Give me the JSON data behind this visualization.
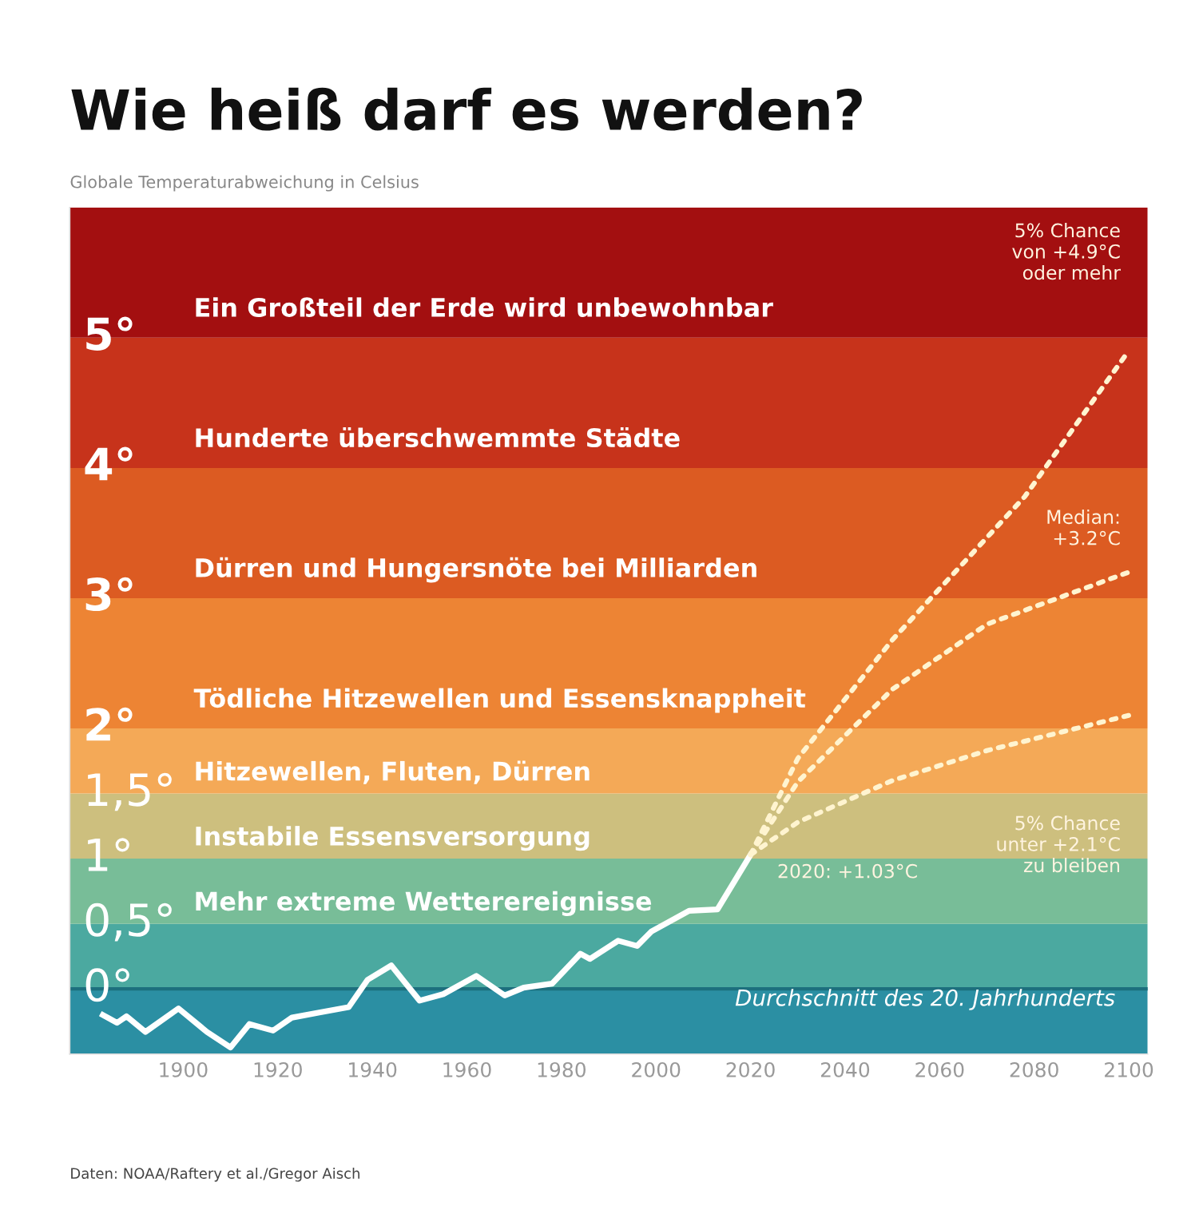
{
  "chart_data": {
    "type": "line",
    "title": "Wie heiß darf es werden?",
    "subtitle": "Globale Temperaturabweichung in Celsius",
    "xlim": [
      1876,
      2104
    ],
    "xticks": [
      1900,
      1920,
      1940,
      1960,
      1980,
      2000,
      2020,
      2040,
      2060,
      2080,
      2100
    ],
    "ylim": [
      -0.5,
      6
    ],
    "yticks": [
      {
        "value": 0,
        "label": "0°"
      },
      {
        "value": 0.5,
        "label": "0,5°"
      },
      {
        "value": 1,
        "label": "1°"
      },
      {
        "value": 1.5,
        "label": "1,5°"
      },
      {
        "value": 2,
        "label": "2°"
      },
      {
        "value": 3,
        "label": "3°"
      },
      {
        "value": 4,
        "label": "4°"
      },
      {
        "value": 5,
        "label": "5°"
      }
    ],
    "grid": false,
    "legend": false,
    "marker": "none",
    "bands": [
      {
        "axis": "y",
        "from": -0.5,
        "to": 0,
        "color": "#2b8fa3"
      },
      {
        "axis": "y",
        "from": 0,
        "to": 0.5,
        "color": "#4ba9a0"
      },
      {
        "axis": "y",
        "from": 0.5,
        "to": 1,
        "label": "Mehr extreme Wetterereignisse",
        "color": "#78bd98"
      },
      {
        "axis": "y",
        "from": 1,
        "to": 1.5,
        "label": "Instabile Essensversorgung",
        "color": "#cdbf7e"
      },
      {
        "axis": "y",
        "from": 1.5,
        "to": 2,
        "label": "Hitzewellen, Fluten, Dürren",
        "color": "#f4a957"
      },
      {
        "axis": "y",
        "from": 2,
        "to": 3,
        "label": "Tödliche Hitzewellen und Essensknappheit",
        "color": "#ed8434"
      },
      {
        "axis": "y",
        "from": 3,
        "to": 4,
        "label": "Dürren und Hungersnöte bei Milliarden",
        "color": "#dc5b22"
      },
      {
        "axis": "y",
        "from": 4,
        "to": 5,
        "label": "Hunderte überschwemmte Städte",
        "color": "#c7331b"
      },
      {
        "axis": "y",
        "from": 5,
        "to": 6,
        "label": "Ein Großteil der Erde wird unbewohnbar",
        "color": "#a30f10"
      }
    ],
    "ref_lines": [
      {
        "axis": "y",
        "value": 0,
        "label": "Durchschnitt des 20. Jahrhunderts",
        "color": "#1d6f7e"
      }
    ],
    "series": [
      {
        "color": "#ffffff",
        "line_style": "solid",
        "x": [
          1883,
          1886,
          1888,
          1892,
          1899,
          1905,
          1910,
          1914,
          1919,
          1923,
          1929,
          1935,
          1939,
          1944,
          1950,
          1955,
          1962,
          1968,
          1972,
          1978,
          1984,
          1986,
          1992,
          1996,
          1999,
          2007,
          2013,
          2020
        ],
        "values": [
          -0.2,
          -0.26,
          -0.21,
          -0.33,
          -0.15,
          -0.33,
          -0.45,
          -0.27,
          -0.32,
          -0.22,
          -0.18,
          -0.14,
          0.07,
          0.18,
          -0.09,
          -0.04,
          0.1,
          -0.05,
          0.01,
          0.04,
          0.27,
          0.23,
          0.37,
          0.33,
          0.44,
          0.6,
          0.61,
          1.03
        ]
      },
      {
        "color": "#fff4d0",
        "line_style": "dotted",
        "x": [
          2020,
          2030,
          2050,
          2078,
          2100
        ],
        "values": [
          1.03,
          1.77,
          2.68,
          3.78,
          4.9
        ]
      },
      {
        "color": "#fff4d0",
        "line_style": "dotted",
        "x": [
          2020,
          2030,
          2050,
          2070,
          2100
        ],
        "values": [
          1.03,
          1.59,
          2.3,
          2.8,
          3.2
        ]
      },
      {
        "color": "#fff4d0",
        "line_style": "dotted",
        "x": [
          2020,
          2030,
          2050,
          2070,
          2100
        ],
        "values": [
          1.03,
          1.28,
          1.6,
          1.83,
          2.1
        ]
      }
    ],
    "annotations": [
      "5% Chance\nvon +4.9°C\noder mehr",
      "Median:\n+3.2°C",
      "5% Chance\nunter +2.1°C\nzu bleiben",
      {
        "text": "2020: +1.03°C",
        "x": 2020,
        "y": 1.03
      },
      "Daten: NOAA/Raftery et al./Gregor Aisch"
    ]
  }
}
